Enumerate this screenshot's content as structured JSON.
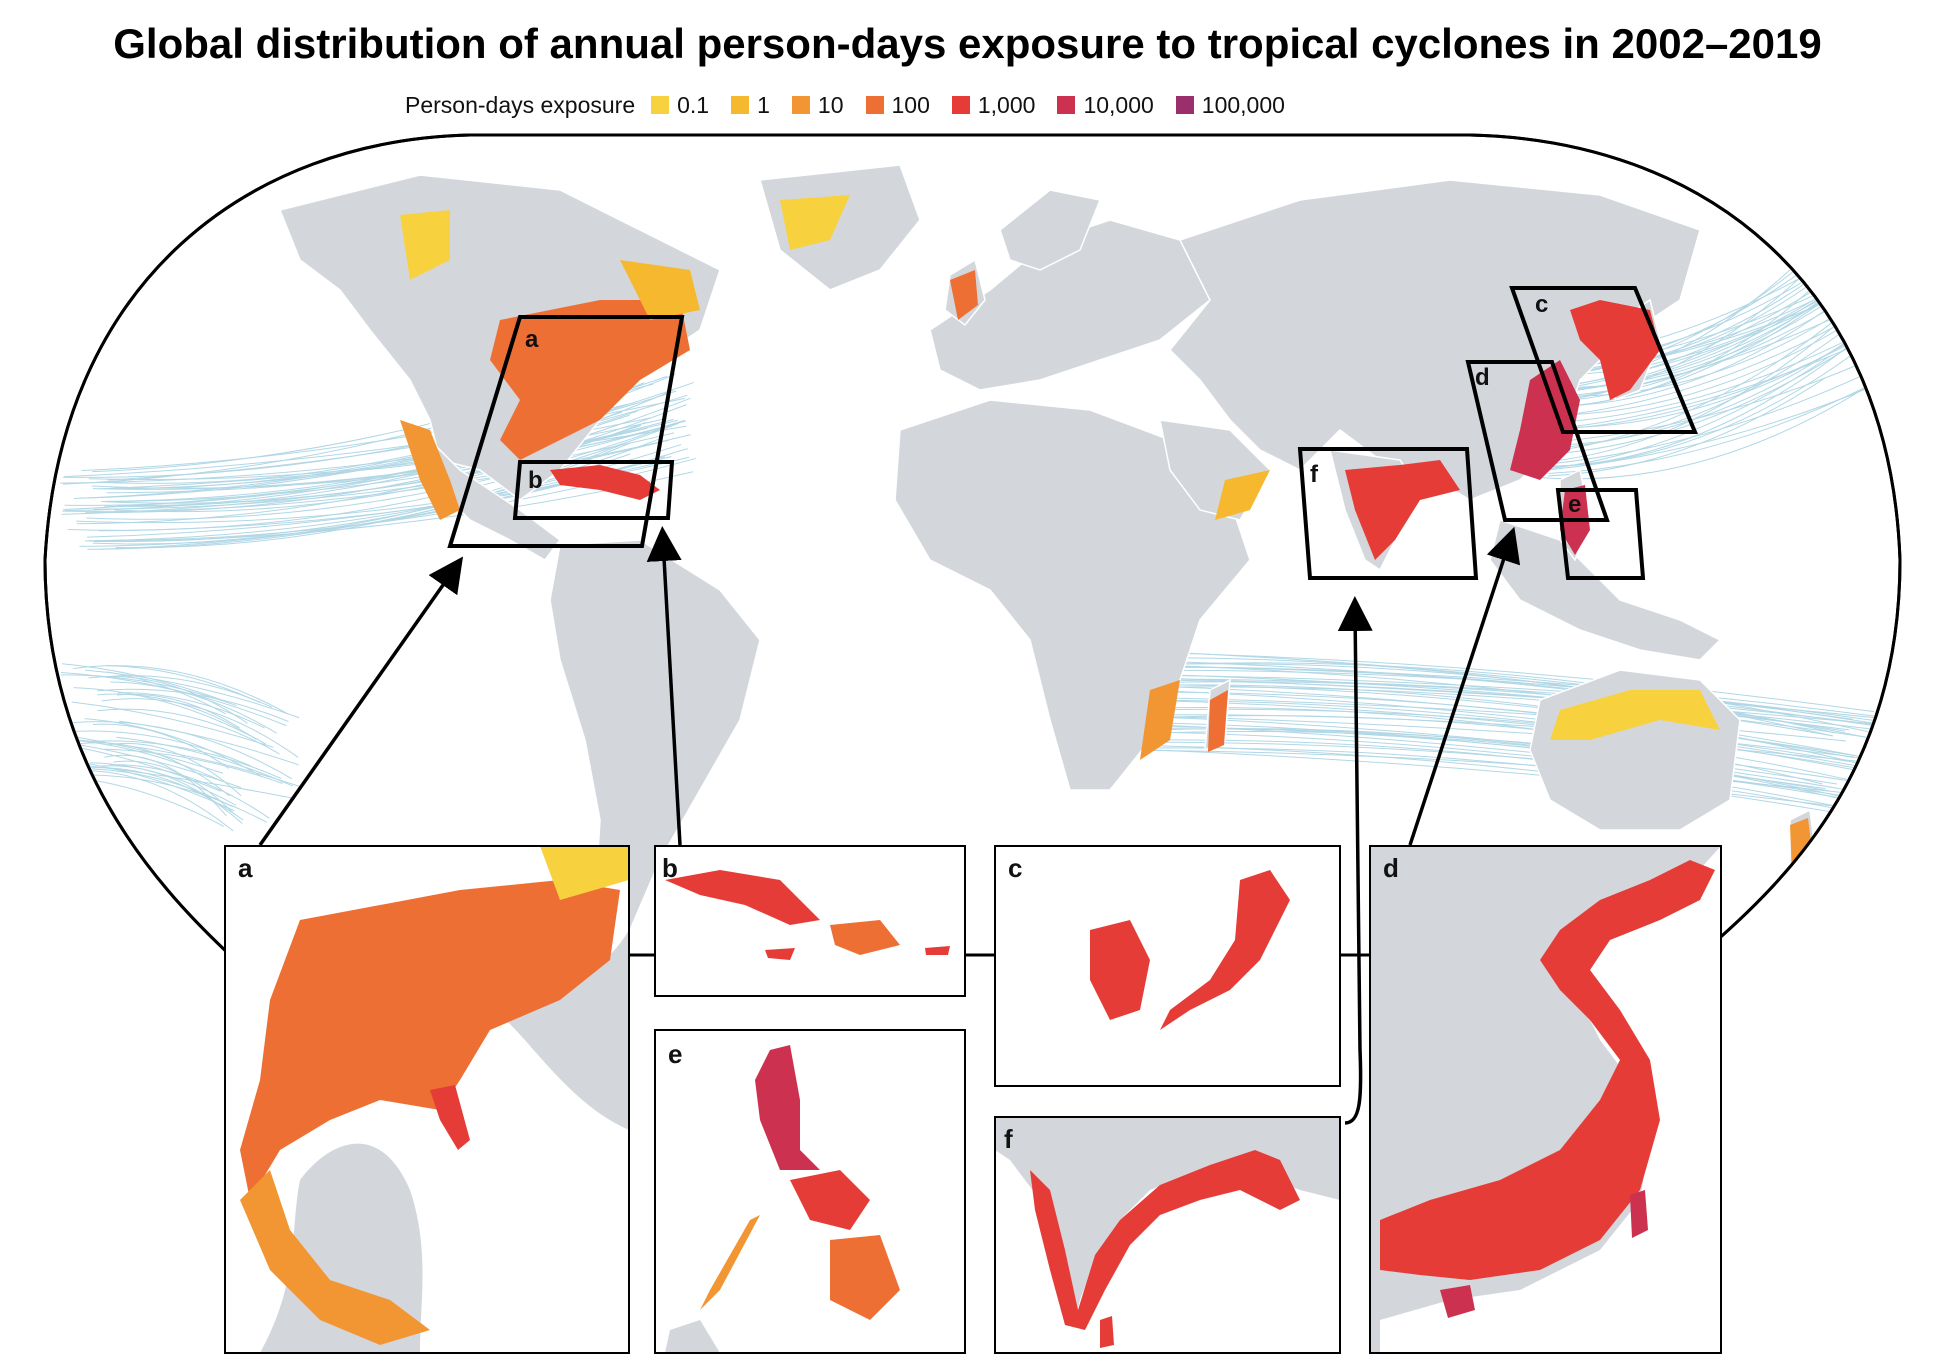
{
  "title": "Global distribution of annual person-days exposure to tropical cyclones in 2002–2019",
  "legend": {
    "label": "Person-days exposure",
    "items": [
      {
        "label": "0.1",
        "color": "#f7d23e"
      },
      {
        "label": "1",
        "color": "#f5b82e"
      },
      {
        "label": "10",
        "color": "#f29634"
      },
      {
        "label": "100",
        "color": "#ee6f33"
      },
      {
        "label": "1,000",
        "color": "#e53c37"
      },
      {
        "label": "10,000",
        "color": "#cd3150"
      },
      {
        "label": "100,000",
        "color": "#9a2f6c"
      }
    ]
  },
  "colors": {
    "land": "#d3d7dc",
    "ocean": "#ffffff",
    "tracks": "#a9d3e3",
    "borders": "#ffffff",
    "frame": "#000000"
  },
  "map_boxes": [
    {
      "label": "a"
    },
    {
      "label": "b"
    },
    {
      "label": "c"
    },
    {
      "label": "d"
    },
    {
      "label": "e"
    },
    {
      "label": "f"
    }
  ],
  "insets": [
    {
      "label": "a"
    },
    {
      "label": "b"
    },
    {
      "label": "c"
    },
    {
      "label": "d"
    },
    {
      "label": "e"
    },
    {
      "label": "f"
    }
  ]
}
